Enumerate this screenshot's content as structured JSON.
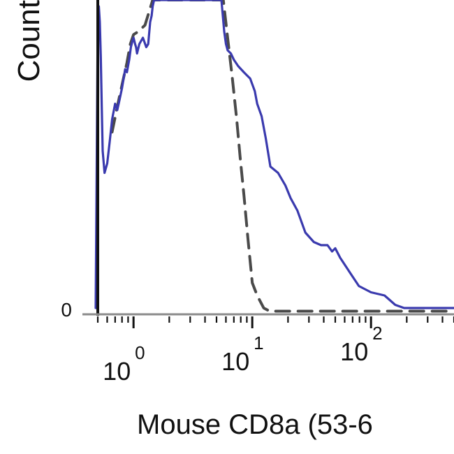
{
  "chart_data": {
    "type": "line",
    "title": "",
    "xlabel": "Mouse CD8a (53-6",
    "ylabel": "Count",
    "x_scale": "log",
    "xlim": [
      0.5,
      500
    ],
    "ylim": [
      0,
      100
    ],
    "x_ticks": [
      {
        "value": 1,
        "base": "10",
        "exponent": "0"
      },
      {
        "value": 10,
        "base": "10",
        "exponent": "1"
      },
      {
        "value": 100,
        "base": "10",
        "exponent": "2"
      }
    ],
    "y_ticks": [
      {
        "value": 0,
        "label": "0"
      }
    ],
    "grid": false,
    "series": [
      {
        "style": "solid",
        "color": "#3a3aae",
        "x": [
          0.48,
          0.5,
          0.51,
          0.52,
          0.53,
          0.54,
          0.55,
          0.57,
          0.6,
          0.63,
          0.66,
          0.7,
          0.73,
          0.76,
          0.8,
          0.85,
          0.88,
          0.92,
          0.95,
          0.98,
          1.0,
          1.03,
          1.05,
          1.07,
          1.12,
          1.2,
          1.28,
          1.33,
          1.38,
          1.42,
          1.45,
          1.49,
          5.5,
          5.65,
          5.8,
          6.0,
          6.2,
          6.6,
          7.0,
          7.6,
          8.5,
          9.6,
          10.5,
          11.0,
          12.0,
          13.0,
          14.2,
          16.5,
          19.0,
          21.0,
          24.0,
          28.0,
          33.0,
          38.0,
          43.0,
          47.0,
          50.0,
          55.0,
          62.0,
          70.0,
          79.0,
          100.0,
          130.0,
          160.0,
          190.0,
          240.0,
          300.0,
          400.0,
          500.0
        ],
        "y": [
          2,
          95,
          98,
          93,
          82,
          66,
          52,
          45,
          48,
          55,
          62,
          67,
          65,
          68,
          72,
          78,
          77,
          81,
          85,
          87,
          88,
          86,
          85,
          83,
          86,
          88,
          85,
          86,
          93,
          95,
          98,
          100,
          100,
          95,
          90,
          86,
          84,
          83,
          81,
          79,
          77,
          75,
          71,
          67,
          63,
          56,
          47,
          45,
          41,
          37,
          33,
          26,
          23,
          22,
          22,
          20,
          21,
          18,
          15,
          12,
          9,
          7,
          6,
          3,
          2,
          2,
          2,
          2,
          2
        ]
      },
      {
        "style": "dashed",
        "color": "#4a4a4a",
        "x": [
          0.66,
          0.73,
          0.8,
          0.88,
          0.94,
          1.0,
          1.1,
          1.25,
          1.45,
          5.7,
          6.2,
          6.8,
          7.4,
          7.9,
          8.5,
          9.2,
          10.0,
          11.0,
          12.5,
          14.0,
          16.0,
          18.0,
          20.0,
          24.0,
          30.0,
          40.0,
          60.0,
          100.0,
          150.0,
          200.0,
          300.0,
          500.0
        ],
        "y": [
          58,
          66,
          73,
          80,
          86,
          89,
          90,
          92,
          100,
          100,
          88,
          75,
          62,
          50,
          38,
          24,
          10,
          6,
          2,
          1,
          1,
          1,
          1,
          1,
          1,
          1,
          1,
          1,
          1,
          1,
          1,
          1
        ]
      }
    ]
  }
}
